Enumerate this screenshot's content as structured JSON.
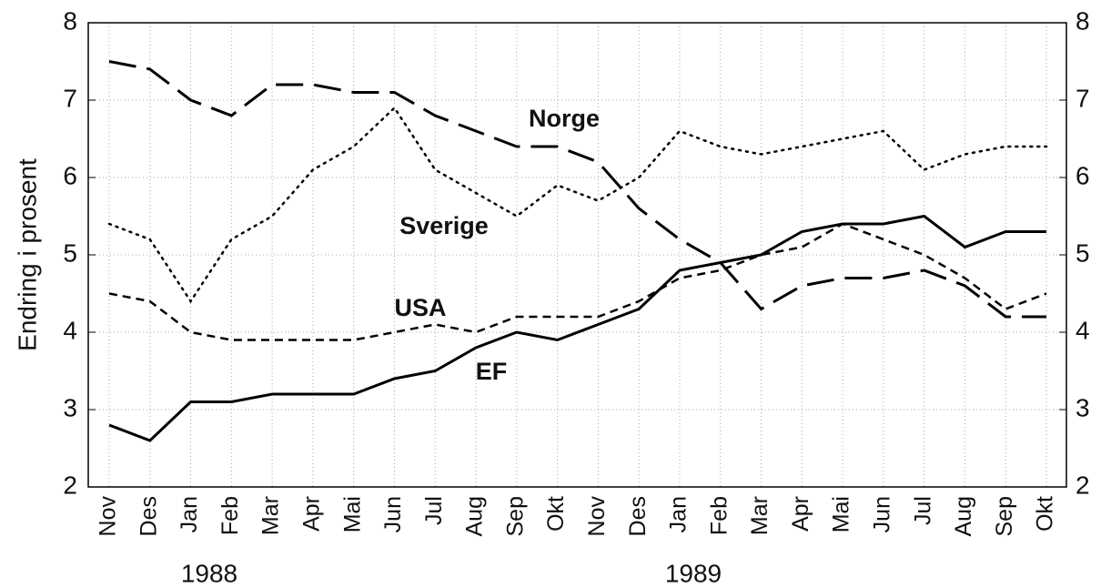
{
  "chart_data": {
    "type": "line",
    "y_label": "Endring i prosent",
    "categories": [
      "Nov",
      "Des",
      "Jan",
      "Feb",
      "Mar",
      "Apr",
      "Mai",
      "Jun",
      "Jul",
      "Aug",
      "Sep",
      "Okt",
      "Nov",
      "Des",
      "Jan",
      "Feb",
      "Mar",
      "Apr",
      "Mai",
      "Jun",
      "Jul",
      "Aug",
      "Sep",
      "Okt"
    ],
    "year_labels": [
      "1988",
      "1989"
    ],
    "ylim": [
      2,
      8
    ],
    "yticks": [
      2,
      3,
      4,
      5,
      6,
      7,
      8
    ],
    "grid": true,
    "series": [
      {
        "name": "Norge",
        "color": "#000000",
        "dash": "long",
        "values": [
          7.5,
          7.4,
          7.0,
          6.8,
          7.2,
          7.2,
          7.1,
          7.1,
          6.8,
          6.6,
          6.4,
          6.4,
          6.2,
          5.6,
          5.2,
          4.9,
          4.3,
          4.6,
          4.7,
          4.7,
          4.8,
          4.6,
          4.2,
          4.2
        ]
      },
      {
        "name": "Sverige",
        "color": "#000000",
        "dash": "dotted",
        "values": [
          5.4,
          5.2,
          4.4,
          5.2,
          5.5,
          6.1,
          6.4,
          6.9,
          6.1,
          5.8,
          5.5,
          5.9,
          5.7,
          6.0,
          6.6,
          6.4,
          6.3,
          6.4,
          6.5,
          6.6,
          6.1,
          6.3,
          6.4,
          6.4
        ]
      },
      {
        "name": "USA",
        "color": "#000000",
        "dash": "short",
        "values": [
          4.5,
          4.4,
          4.0,
          3.9,
          3.9,
          3.9,
          3.9,
          4.0,
          4.1,
          4.0,
          4.2,
          4.2,
          4.2,
          4.4,
          4.7,
          4.8,
          5.0,
          5.1,
          5.4,
          5.2,
          5.0,
          4.7,
          4.3,
          4.5
        ]
      },
      {
        "name": "EF",
        "color": "#000000",
        "dash": "solid",
        "values": [
          2.8,
          2.6,
          3.1,
          3.1,
          3.2,
          3.2,
          3.2,
          3.4,
          3.5,
          3.8,
          4.0,
          3.9,
          4.1,
          4.3,
          4.8,
          4.9,
          5.0,
          5.3,
          5.4,
          5.4,
          5.5,
          5.1,
          5.3,
          5.3
        ]
      }
    ]
  }
}
